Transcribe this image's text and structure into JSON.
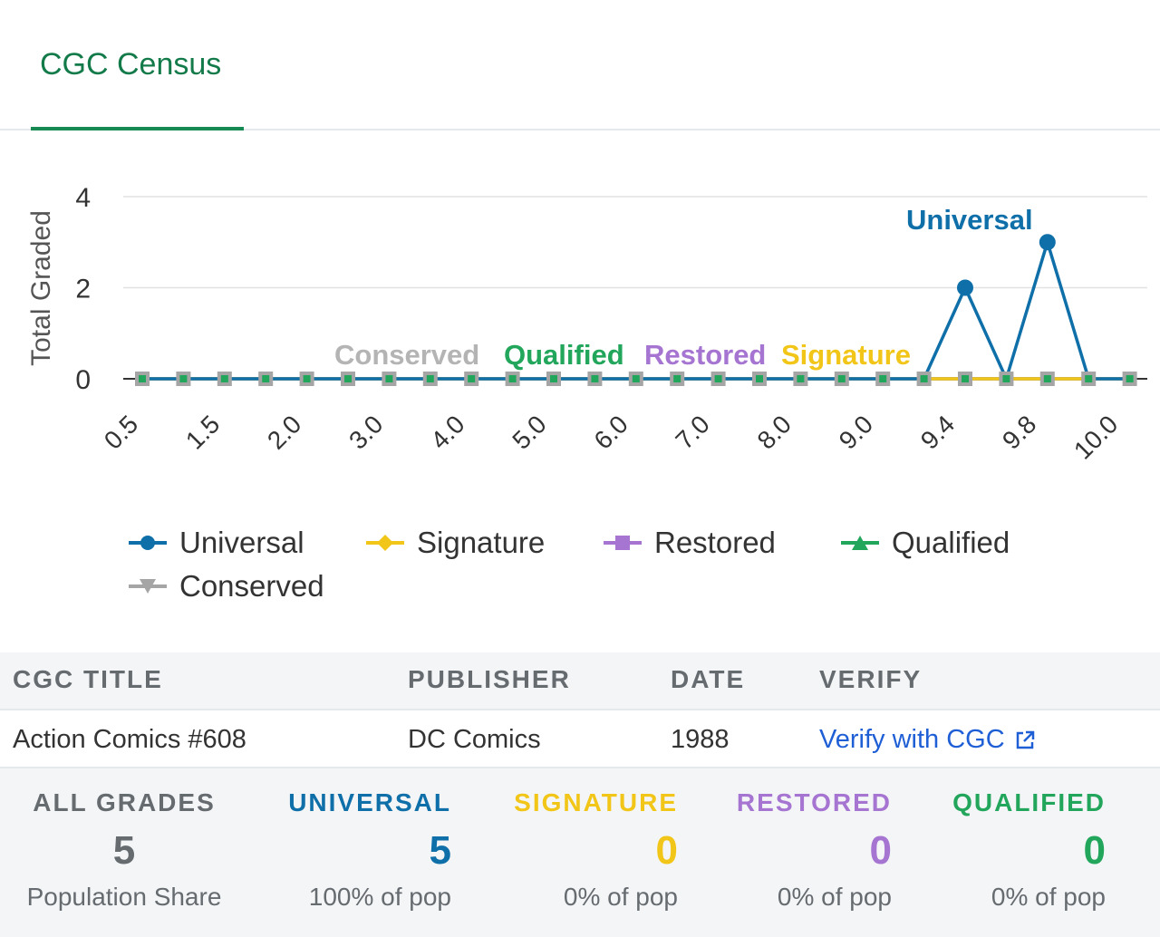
{
  "tabs": [
    {
      "label": "CGC Census"
    }
  ],
  "colors": {
    "universal": "#0f6fa8",
    "signature": "#f2c618",
    "restored": "#a575d1",
    "qualified": "#22a65b",
    "conserved": "#a5a5a5",
    "tab_active": "#137a4a",
    "link": "#1f5fd6"
  },
  "chart_data": {
    "type": "line",
    "ylabel": "Total Graded",
    "xlabel": "",
    "ylim": [
      0,
      4
    ],
    "yticks": [
      0,
      2,
      4
    ],
    "x_tick_labels": [
      "0.5",
      "1.5",
      "2.0",
      "3.0",
      "4.0",
      "5.0",
      "6.0",
      "7.0",
      "8.0",
      "9.0",
      "9.4",
      "9.8",
      "10.0"
    ],
    "x": [
      "0.5",
      "1.0",
      "1.5",
      "1.8",
      "2.0",
      "2.5",
      "3.0",
      "3.5",
      "4.0",
      "4.5",
      "5.0",
      "5.5",
      "6.0",
      "6.5",
      "7.0",
      "7.5",
      "8.0",
      "8.5",
      "9.0",
      "9.2",
      "9.4",
      "9.6",
      "9.8",
      "9.9",
      "10.0"
    ],
    "series": [
      {
        "name": "Universal",
        "marker": "circle",
        "color": "#0f6fa8",
        "values": [
          0,
          0,
          0,
          0,
          0,
          0,
          0,
          0,
          0,
          0,
          0,
          0,
          0,
          0,
          0,
          0,
          0,
          0,
          0,
          0,
          2,
          0,
          3,
          0,
          0
        ]
      },
      {
        "name": "Signature",
        "marker": "diamond",
        "color": "#f2c618",
        "values": [
          0,
          0,
          0,
          0,
          0,
          0,
          0,
          0,
          0,
          0,
          0,
          0,
          0,
          0,
          0,
          0,
          0,
          0,
          0,
          0,
          0,
          0,
          0,
          0,
          0
        ]
      },
      {
        "name": "Restored",
        "marker": "square",
        "color": "#a575d1",
        "values": [
          0,
          0,
          0,
          0,
          0,
          0,
          0,
          0,
          0,
          0,
          0,
          0,
          0,
          0,
          0,
          0,
          0,
          0,
          0,
          0,
          0,
          0,
          0,
          0,
          0
        ]
      },
      {
        "name": "Qualified",
        "marker": "triangle",
        "color": "#22a65b",
        "values": [
          0,
          0,
          0,
          0,
          0,
          0,
          0,
          0,
          0,
          0,
          0,
          0,
          0,
          0,
          0,
          0,
          0,
          0,
          0,
          0,
          0,
          0,
          0,
          0,
          0
        ]
      },
      {
        "name": "Conserved",
        "marker": "triangle-down",
        "color": "#a5a5a5",
        "values": [
          0,
          0,
          0,
          0,
          0,
          0,
          0,
          0,
          0,
          0,
          0,
          0,
          0,
          0,
          0,
          0,
          0,
          0,
          0,
          0,
          0,
          0,
          0,
          0,
          0
        ]
      }
    ],
    "annotations": [
      {
        "text": "Conserved",
        "color": "#b4b4b4"
      },
      {
        "text": "Qualified",
        "color": "#22a65b"
      },
      {
        "text": "Restored",
        "color": "#a575d1"
      },
      {
        "text": "Signature",
        "color": "#f2c618"
      },
      {
        "text": "Universal",
        "color": "#0f6fa8"
      }
    ],
    "legend": {
      "position": "bottom"
    },
    "grid": true
  },
  "table": {
    "headers": {
      "title": "CGC TITLE",
      "publisher": "PUBLISHER",
      "date": "DATE",
      "verify": "VERIFY"
    },
    "row": {
      "title": "Action Comics #608",
      "publisher": "DC Comics",
      "date": "1988",
      "verify": "Verify with CGC"
    }
  },
  "stats": [
    {
      "label": "ALL GRADES",
      "value": "5",
      "sub": "Population Share",
      "color": "#666b70"
    },
    {
      "label": "UNIVERSAL",
      "value": "5",
      "sub": "100% of pop",
      "color": "#0f6fa8"
    },
    {
      "label": "SIGNATURE",
      "value": "0",
      "sub": "0% of pop",
      "color": "#f2c618"
    },
    {
      "label": "RESTORED",
      "value": "0",
      "sub": "0% of pop",
      "color": "#a575d1"
    },
    {
      "label": "QUALIFIED",
      "value": "0",
      "sub": "0% of pop",
      "color": "#22a65b"
    }
  ]
}
